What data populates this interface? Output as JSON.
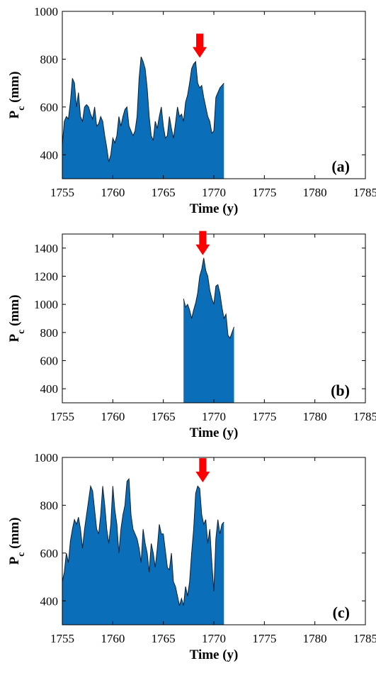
{
  "colors": {
    "fill": "#0a6eb8",
    "line": "#0b1f33",
    "arrow": "#ff0000"
  },
  "chart_data": [
    {
      "type": "area",
      "panel_label": "(a)",
      "xlabel": "Time (y)",
      "ylabel": {
        "main": "P",
        "sub": "c",
        "unit": " (mm)"
      },
      "xlim": [
        1755,
        1785
      ],
      "ylim": [
        300,
        1000
      ],
      "xticks": [
        1755,
        1760,
        1765,
        1770,
        1775,
        1780,
        1785
      ],
      "yticks": [
        400,
        600,
        800,
        1000
      ],
      "arrow_x": 1768.6,
      "arrow_y": 800,
      "x": [
        1755.0,
        1755.2,
        1755.4,
        1755.6,
        1755.8,
        1756.0,
        1756.2,
        1756.4,
        1756.6,
        1756.8,
        1757.0,
        1757.2,
        1757.4,
        1757.6,
        1757.8,
        1758.0,
        1758.2,
        1758.4,
        1758.6,
        1758.8,
        1759.0,
        1759.2,
        1759.4,
        1759.6,
        1759.8,
        1760.0,
        1760.2,
        1760.4,
        1760.6,
        1760.8,
        1761.0,
        1761.2,
        1761.4,
        1761.6,
        1761.8,
        1762.0,
        1762.2,
        1762.4,
        1762.6,
        1762.8,
        1763.0,
        1763.2,
        1763.4,
        1763.6,
        1763.8,
        1764.0,
        1764.2,
        1764.4,
        1764.6,
        1764.8,
        1765.0,
        1765.2,
        1765.4,
        1765.6,
        1765.8,
        1766.0,
        1766.2,
        1766.4,
        1766.6,
        1766.8,
        1767.0,
        1767.2,
        1767.4,
        1767.6,
        1767.8,
        1768.0,
        1768.2,
        1768.4,
        1768.6,
        1768.8,
        1769.0,
        1769.2,
        1769.4,
        1769.6,
        1769.8,
        1770.0,
        1770.2,
        1770.4,
        1770.6,
        1770.8,
        1771.0
      ],
      "y": [
        440,
        540,
        560,
        550,
        620,
        720,
        700,
        600,
        660,
        560,
        540,
        600,
        610,
        600,
        570,
        550,
        600,
        520,
        530,
        560,
        540,
        480,
        430,
        370,
        400,
        470,
        450,
        480,
        560,
        520,
        560,
        590,
        600,
        520,
        500,
        480,
        500,
        560,
        720,
        810,
        790,
        760,
        680,
        560,
        480,
        460,
        540,
        510,
        560,
        600,
        520,
        470,
        480,
        560,
        510,
        470,
        530,
        600,
        560,
        570,
        540,
        620,
        650,
        700,
        760,
        780,
        790,
        700,
        680,
        690,
        640,
        600,
        560,
        540,
        490,
        500,
        640,
        660,
        680,
        690,
        700
      ]
    },
    {
      "type": "area",
      "panel_label": "(b)",
      "xlabel": "Time (y)",
      "ylabel": {
        "main": "P",
        "sub": "c",
        "unit": " (mm)"
      },
      "xlim": [
        1755,
        1785
      ],
      "ylim": [
        300,
        1500
      ],
      "xticks": [
        1755,
        1760,
        1765,
        1770,
        1775,
        1780,
        1785
      ],
      "yticks": [
        400,
        600,
        800,
        1000,
        1200,
        1400
      ],
      "arrow_x": 1768.9,
      "arrow_y": 1340,
      "x": [
        1767.0,
        1767.2,
        1767.4,
        1767.6,
        1767.8,
        1768.0,
        1768.2,
        1768.4,
        1768.6,
        1768.8,
        1769.0,
        1769.2,
        1769.4,
        1769.6,
        1769.8,
        1770.0,
        1770.2,
        1770.4,
        1770.6,
        1770.8,
        1771.0,
        1771.2,
        1771.4,
        1771.6,
        1771.8,
        1772.0
      ],
      "y": [
        1040,
        980,
        1000,
        960,
        900,
        960,
        1010,
        1080,
        1200,
        1250,
        1330,
        1240,
        1200,
        1100,
        1040,
        1000,
        1130,
        1140,
        1080,
        980,
        900,
        930,
        780,
        760,
        800,
        840
      ]
    },
    {
      "type": "area",
      "panel_label": "(c)",
      "xlabel": "Time (y)",
      "ylabel": {
        "main": "P",
        "sub": "c",
        "unit": " (mm)"
      },
      "xlim": [
        1755,
        1785
      ],
      "ylim": [
        300,
        1000
      ],
      "xticks": [
        1755,
        1760,
        1765,
        1770,
        1775,
        1780,
        1785
      ],
      "yticks": [
        400,
        600,
        800,
        1000
      ],
      "arrow_x": 1768.9,
      "arrow_y": 890,
      "x": [
        1755.0,
        1755.2,
        1755.4,
        1755.6,
        1755.8,
        1756.0,
        1756.2,
        1756.4,
        1756.6,
        1756.8,
        1757.0,
        1757.2,
        1757.4,
        1757.6,
        1757.8,
        1758.0,
        1758.2,
        1758.4,
        1758.6,
        1758.8,
        1759.0,
        1759.2,
        1759.4,
        1759.6,
        1759.8,
        1760.0,
        1760.2,
        1760.4,
        1760.6,
        1760.8,
        1761.0,
        1761.2,
        1761.4,
        1761.6,
        1761.8,
        1762.0,
        1762.2,
        1762.4,
        1762.6,
        1762.8,
        1763.0,
        1763.2,
        1763.4,
        1763.6,
        1763.8,
        1764.0,
        1764.2,
        1764.4,
        1764.6,
        1764.8,
        1765.0,
        1765.2,
        1765.4,
        1765.6,
        1765.8,
        1766.0,
        1766.2,
        1766.4,
        1766.6,
        1766.8,
        1767.0,
        1767.2,
        1767.4,
        1767.6,
        1767.8,
        1768.0,
        1768.2,
        1768.4,
        1768.6,
        1768.8,
        1769.0,
        1769.2,
        1769.4,
        1769.6,
        1769.8,
        1770.0,
        1770.2,
        1770.4,
        1770.6,
        1770.8,
        1771.0
      ],
      "y": [
        480,
        520,
        600,
        560,
        650,
        700,
        740,
        720,
        750,
        700,
        620,
        700,
        760,
        820,
        880,
        860,
        780,
        700,
        680,
        760,
        880,
        800,
        700,
        640,
        720,
        880,
        780,
        720,
        600,
        700,
        760,
        800,
        900,
        910,
        760,
        700,
        680,
        660,
        620,
        560,
        700,
        640,
        600,
        520,
        640,
        600,
        540,
        620,
        720,
        680,
        680,
        610,
        540,
        530,
        600,
        480,
        460,
        420,
        380,
        410,
        380,
        460,
        420,
        480,
        600,
        700,
        850,
        880,
        870,
        760,
        720,
        740,
        640,
        700,
        560,
        440,
        660,
        740,
        680,
        720,
        730
      ]
    }
  ]
}
